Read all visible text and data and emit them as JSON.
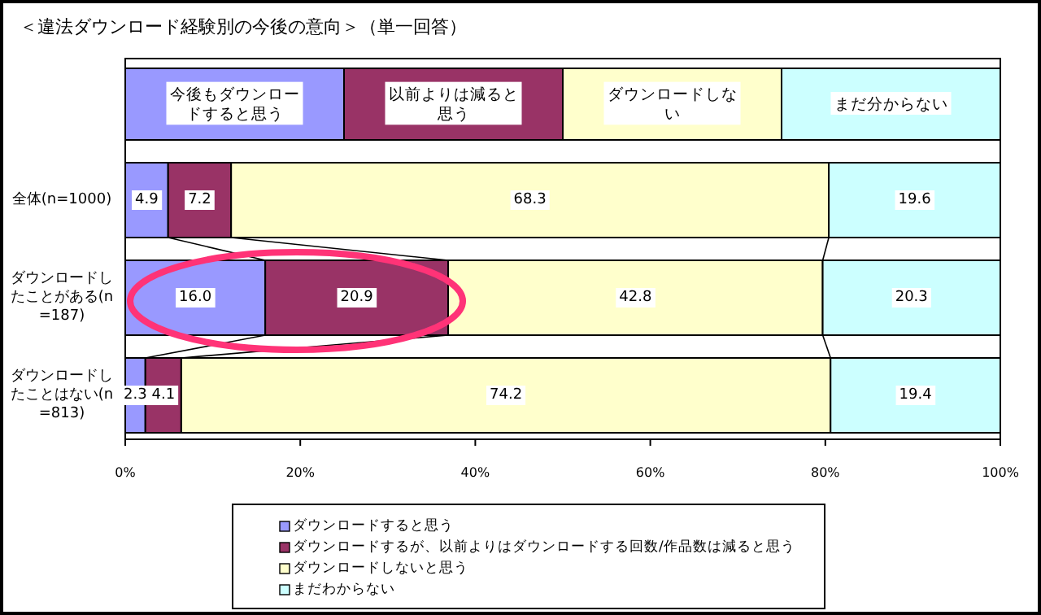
{
  "chart_data": {
    "type": "bar",
    "orientation": "horizontal",
    "stacked": true,
    "title": "＜違法ダウンロード経験別の今後の意向＞（単一回答）",
    "categories": [
      "全体(n=1000)",
      "ダウンロードしたことがある(n=187)",
      "ダウンロードしたことはない(n=813)"
    ],
    "series": [
      {
        "name": "ダウンロードすると思う",
        "color": "#9999ff",
        "values": [
          4.9,
          16.0,
          2.3
        ],
        "value_labels": [
          "4.9",
          "16.0",
          "2.3"
        ]
      },
      {
        "name": "ダウンロードするが、以前よりはダウンロードする回数/作品数は減ると思う",
        "color": "#993366",
        "values": [
          7.2,
          20.9,
          4.1
        ],
        "value_labels": [
          "7.2",
          "20.9",
          "4.1"
        ]
      },
      {
        "name": "ダウンロードしないと思う",
        "color": "#ffffcc",
        "values": [
          68.3,
          42.8,
          74.2
        ],
        "value_labels": [
          "68.3",
          "42.8",
          "74.2"
        ]
      },
      {
        "name": "まだわからない",
        "color": "#ccffff",
        "values": [
          19.6,
          20.3,
          19.4
        ],
        "value_labels": [
          "19.6",
          "20.3",
          "19.4"
        ]
      }
    ],
    "annotations": [
      "今後もダウンロードすると思う",
      "以前よりは減ると思う",
      "ダウンロードしない",
      "まだ分からない"
    ],
    "xlim": [
      0,
      100
    ],
    "xticks": [
      {
        "value": 0,
        "label": "0%"
      },
      {
        "value": 20,
        "label": "20%"
      },
      {
        "value": 40,
        "label": "40%"
      },
      {
        "value": 60,
        "label": "60%"
      },
      {
        "value": 80,
        "label": "80%"
      },
      {
        "value": 100,
        "label": "100%"
      }
    ],
    "grid": false,
    "legend": "bottom"
  }
}
